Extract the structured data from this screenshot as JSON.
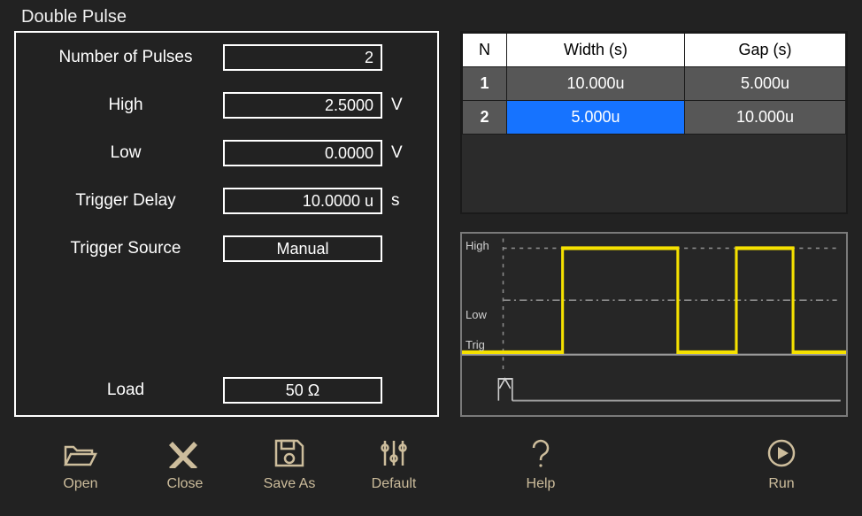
{
  "title": "Double Pulse",
  "settings": {
    "num_pulses": {
      "label": "Number of Pulses",
      "value": "2",
      "unit": ""
    },
    "high": {
      "label": "High",
      "value": "2.5000",
      "unit": "V"
    },
    "low": {
      "label": "Low",
      "value": "0.0000",
      "unit": "V"
    },
    "trigger_delay": {
      "label": "Trigger Delay",
      "value": "10.0000 u",
      "unit": "s"
    },
    "trigger_source": {
      "label": "Trigger Source",
      "value": "Manual",
      "unit": ""
    },
    "load": {
      "label": "Load",
      "value": "50 Ω",
      "unit": ""
    }
  },
  "pulse_table": {
    "cols": {
      "n": "N",
      "width": "Width (s)",
      "gap": "Gap (s)"
    },
    "rows": [
      {
        "n": "1",
        "width": "10.000u",
        "gap": "5.000u",
        "selected_col": null
      },
      {
        "n": "2",
        "width": "5.000u",
        "gap": "10.000u",
        "selected_col": "width"
      }
    ]
  },
  "waveform": {
    "labels": {
      "high": "High",
      "low": "Low",
      "trig": "Trig"
    },
    "trace_color": "#f5e100",
    "axis_color": "#9a9a9a",
    "dash_color": "#8a8a8a"
  },
  "toolbar": {
    "open": "Open",
    "close": "Close",
    "save_as": "Save As",
    "default": "Default",
    "help": "Help",
    "run": "Run"
  },
  "colors": {
    "icon": "#cdbd9c",
    "selection": "#1673ff"
  }
}
